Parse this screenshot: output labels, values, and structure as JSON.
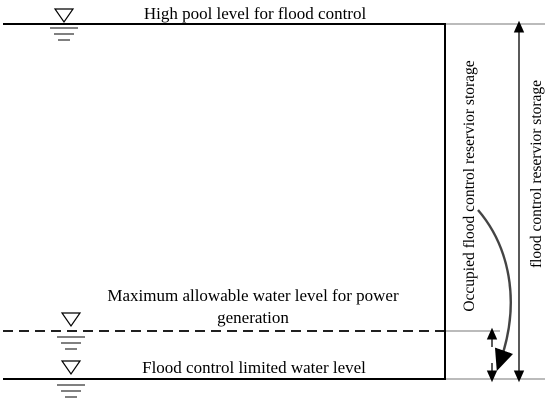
{
  "diagram": {
    "labels": {
      "high_pool": "High pool level for flood control",
      "max_power_line1": "Maximum allowable water level for power",
      "max_power_line2": "generation",
      "limited_level": "Flood control limited water level",
      "occupied_storage": "Occupied flood control reservior storage",
      "total_storage": "flood control reservior storage"
    },
    "icons": [
      "water-level-triangle-icon"
    ],
    "colors": {
      "stroke": "#000000",
      "guide": "#777777",
      "arrow": "#444444"
    }
  }
}
